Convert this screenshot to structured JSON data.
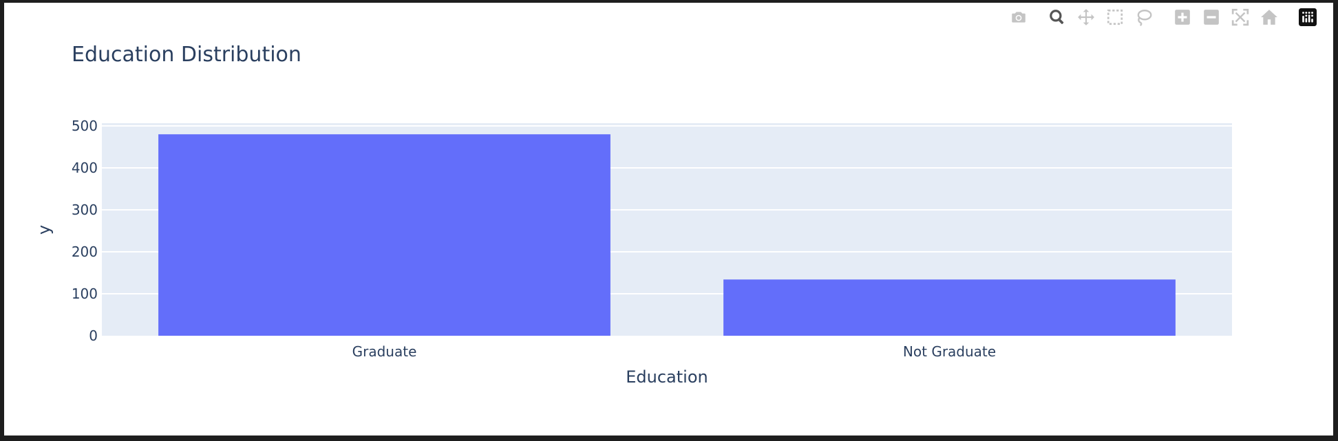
{
  "modebar": {
    "buttons": [
      {
        "name": "camera-icon"
      },
      {
        "name": "zoom-icon"
      },
      {
        "name": "pan-icon"
      },
      {
        "name": "box-select-icon"
      },
      {
        "name": "lasso-select-icon"
      },
      {
        "name": "zoom-in-icon"
      },
      {
        "name": "zoom-out-icon"
      },
      {
        "name": "autoscale-icon"
      },
      {
        "name": "reset-axes-icon"
      },
      {
        "name": "plotly-logo-icon"
      }
    ],
    "icon_color": "#c4c4c4",
    "active_color": "#555555"
  },
  "chart_data": {
    "type": "bar",
    "title": "Education Distribution",
    "xlabel": "Education",
    "ylabel": "y",
    "categories": [
      "Graduate",
      "Not Graduate"
    ],
    "values": [
      480,
      134
    ],
    "ylim": [
      0,
      500
    ],
    "yticks": [
      0,
      100,
      200,
      300,
      400,
      500
    ],
    "bar_color": "#636efa",
    "plot_bgcolor": "#e5ecf6",
    "grid": true,
    "legend": "none"
  }
}
